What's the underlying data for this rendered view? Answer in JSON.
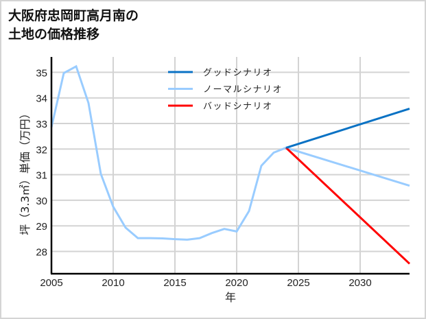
{
  "title_line1": "大阪府忠岡町高月南の",
  "title_line2": "土地の価格推移",
  "chart_data": {
    "type": "line",
    "title": "大阪府忠岡町高月南の土地の価格推移",
    "xlabel": "年",
    "ylabel": "坪（3.3㎡）単価（万円）",
    "xlim": [
      2005,
      2034
    ],
    "ylim": [
      27.13,
      35.6
    ],
    "x_ticks": [
      2005,
      2010,
      2015,
      2020,
      2025,
      2030
    ],
    "y_ticks": [
      28,
      29,
      30,
      31,
      32,
      33,
      34,
      35
    ],
    "grid": true,
    "legend_position": "upper center",
    "series": [
      {
        "name": "グッドシナリオ",
        "color": "#0a72c4",
        "x": [
          2024,
          2034
        ],
        "values": [
          32.05,
          33.58
        ]
      },
      {
        "name": "ノーマルシナリオ",
        "color": "#99ccff",
        "x": [
          2005,
          2006,
          2007,
          2008,
          2009,
          2010,
          2011,
          2012,
          2013,
          2014,
          2015,
          2016,
          2017,
          2018,
          2019,
          2020,
          2021,
          2022,
          2023,
          2024,
          2034
        ],
        "values": [
          32.85,
          34.97,
          35.23,
          33.8,
          31.03,
          29.75,
          28.93,
          28.52,
          28.52,
          28.51,
          28.48,
          28.46,
          28.52,
          28.72,
          28.88,
          28.78,
          29.58,
          31.35,
          31.86,
          32.05,
          30.57
        ]
      },
      {
        "name": "バッドシナリオ",
        "color": "#ff0000",
        "x": [
          2024,
          2034
        ],
        "values": [
          32.05,
          27.52
        ]
      }
    ]
  }
}
